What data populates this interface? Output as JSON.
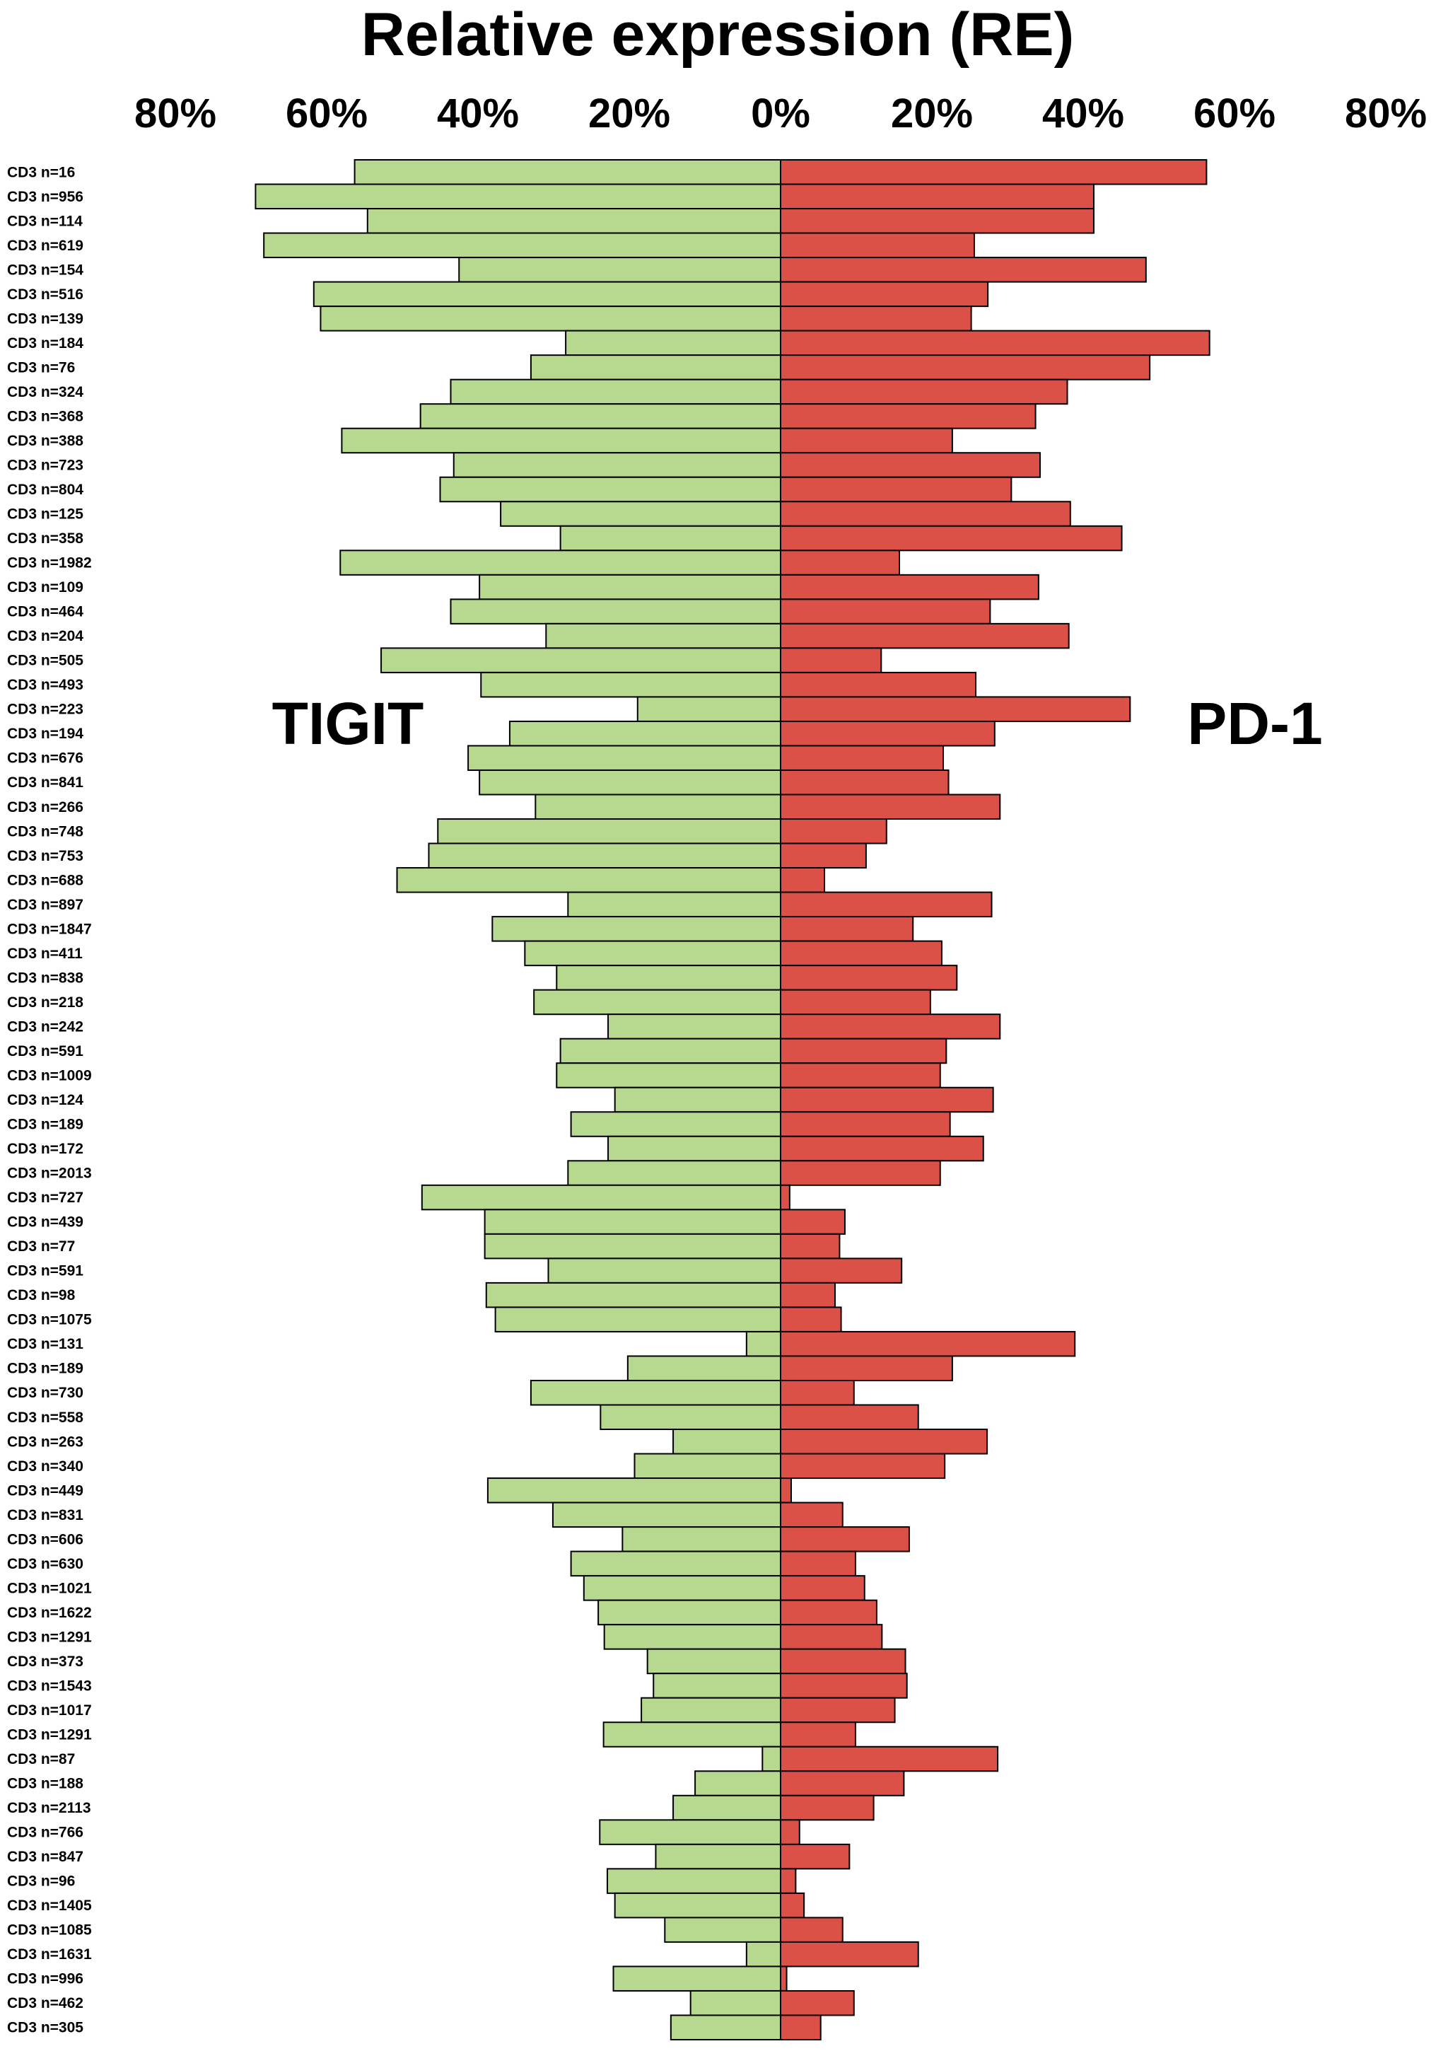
{
  "chart_data": {
    "type": "bar",
    "orientation": "horizontal-diverging",
    "title": "Relative expression (RE)",
    "x_ticks": [
      "80%",
      "60%",
      "40%",
      "20%",
      "0%",
      "20%",
      "40%",
      "60%",
      "80%"
    ],
    "x_range": [
      -80,
      80
    ],
    "unit": "%",
    "categories": [
      "CD3 n=16",
      "CD3 n=956",
      "CD3 n=114",
      "CD3 n=619",
      "CD3 n=154",
      "CD3 n=516",
      "CD3 n=139",
      "CD3 n=184",
      "CD3 n=76",
      "CD3 n=324",
      "CD3 n=368",
      "CD3 n=388",
      "CD3 n=723",
      "CD3 n=804",
      "CD3 n=125",
      "CD3 n=358",
      "CD3 n=1982",
      "CD3 n=109",
      "CD3 n=464",
      "CD3 n=204",
      "CD3 n=505",
      "CD3 n=493",
      "CD3 n=223",
      "CD3 n=194",
      "CD3 n=676",
      "CD3 n=841",
      "CD3 n=266",
      "CD3 n=748",
      "CD3 n=753",
      "CD3 n=688",
      "CD3 n=897",
      "CD3 n=1847",
      "CD3 n=411",
      "CD3 n=838",
      "CD3 n=218",
      "CD3 n=242",
      "CD3 n=591",
      "CD3 n=1009",
      "CD3 n=124",
      "CD3 n=189",
      "CD3 n=172",
      "CD3 n=2013",
      "CD3 n=727",
      "CD3 n=439",
      "CD3 n=77",
      "CD3 n=591",
      "CD3 n=98",
      "CD3 n=1075",
      "CD3 n=131",
      "CD3 n=189",
      "CD3 n=730",
      "CD3 n=558",
      "CD3 n=263",
      "CD3 n=340",
      "CD3 n=449",
      "CD3 n=831",
      "CD3 n=606",
      "CD3 n=630",
      "CD3 n=1021",
      "CD3 n=1622",
      "CD3 n=1291",
      "CD3 n=373",
      "CD3 n=1543",
      "CD3 n=1017",
      "CD3 n=1291",
      "CD3 n=87",
      "CD3 n=188",
      "CD3 n=2113",
      "CD3 n=766",
      "CD3 n=847",
      "CD3 n=96",
      "CD3 n=1405",
      "CD3 n=1085",
      "CD3 n=1631",
      "CD3 n=996",
      "CD3 n=462",
      "CD3 n=305"
    ],
    "series": [
      {
        "name": "TIGIT",
        "side": "left",
        "color": "#b7d88f",
        "values": [
          56.3,
          69.4,
          54.6,
          68.3,
          42.5,
          61.7,
          60.8,
          28.4,
          33.0,
          43.6,
          47.6,
          58.0,
          43.2,
          45.0,
          37.0,
          29.1,
          58.2,
          39.8,
          43.6,
          31.0,
          52.8,
          39.6,
          18.9,
          35.8,
          41.3,
          39.8,
          32.4,
          45.3,
          46.5,
          50.7,
          28.1,
          38.1,
          33.8,
          29.6,
          32.6,
          22.8,
          29.1,
          29.6,
          21.9,
          27.7,
          22.8,
          28.1,
          47.4,
          39.1,
          39.1,
          30.7,
          38.9,
          37.7,
          4.5,
          20.2,
          33.0,
          23.8,
          14.2,
          19.3,
          38.7,
          30.1,
          20.9,
          27.7,
          26.0,
          24.1,
          23.3,
          17.6,
          16.8,
          18.4,
          23.4,
          2.4,
          11.3,
          14.2,
          23.9,
          16.5,
          22.9,
          21.9,
          15.3,
          4.5,
          22.1,
          11.9,
          14.5
        ]
      },
      {
        "name": "PD-1",
        "side": "right",
        "color": "#db5147",
        "values": [
          56.3,
          41.4,
          41.4,
          25.6,
          48.3,
          27.4,
          25.2,
          56.7,
          48.8,
          37.9,
          33.7,
          22.7,
          34.3,
          30.5,
          38.3,
          45.1,
          15.7,
          34.1,
          27.7,
          38.1,
          13.3,
          25.8,
          46.2,
          28.3,
          21.5,
          22.2,
          29.0,
          14.0,
          11.3,
          5.8,
          27.9,
          17.5,
          21.3,
          23.3,
          19.8,
          29.0,
          21.9,
          21.1,
          28.1,
          22.4,
          26.8,
          21.1,
          1.2,
          8.5,
          7.8,
          16.0,
          7.2,
          8.0,
          38.9,
          22.7,
          9.7,
          18.2,
          27.3,
          21.7,
          1.4,
          8.2,
          17.0,
          9.9,
          11.1,
          12.7,
          13.4,
          16.5,
          16.7,
          15.1,
          9.9,
          28.7,
          16.3,
          12.3,
          2.5,
          9.1,
          2.0,
          3.1,
          8.2,
          18.2,
          0.8,
          9.7,
          5.3
        ]
      }
    ],
    "series_labels": [
      "TIGIT",
      "PD-1"
    ],
    "grid": false,
    "legend": "none"
  }
}
